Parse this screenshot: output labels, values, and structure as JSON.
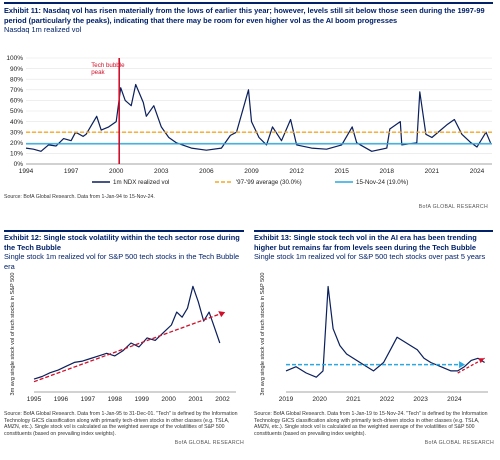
{
  "brand": "BofA GLOBAL RESEARCH",
  "charts": [
    {
      "exhibit": "Exhibit 11:",
      "title": "Nasdaq vol has risen materially from the lows of earlier this year; however, levels still sit below those seen during the 1997-99 period (particularly the peaks), indicating that there may be room for even higher vol as the AI boom progresses",
      "subtitle": "Nasdaq 1m realized vol",
      "source": "Source: BofA Global Research. Data from 1-Jan-94 to 15-Nov-24."
    },
    {
      "exhibit": "Exhibit 12:",
      "title": "Single stock volatility within the tech sector rose during the Tech Bubble",
      "subtitle": "Single stock 1m realized vol for S&P 500 tech stocks in the Tech Bubble era",
      "source": "Source: BofA Global Research. Data from 1-Jan-95 to 31-Dec-01. \"Tech\" is defined by the Information Technology GICS classification along with primarily tech-driven stocks in other classes (e.g. TSLA, AMZN, etc.). Single stock vol is calculated as the weighted average of the volatilities of S&P 500 constituents (based on prevailing index weights)."
    },
    {
      "exhibit": "Exhibit 13:",
      "title": "Single stock tech vol in the AI era has been trending higher but remains far from levels seen during the Tech Bubble",
      "subtitle": "Single stock 1m realized vol for S&P 500 tech stocks over past 5 years",
      "source": "Source: BofA Global Research. Data from 1-Jan-19 to 15-Nov-24. \"Tech\" is defined by the Information Technology GICS classification along with primarily tech-driven stocks in other classes (e.g. TSLA, AMZN, etc.). Single stock vol is calculated as the weighted average of the volatilities of S&P 500 constituents (based on prevailing index weights)."
    }
  ],
  "chart_data": [
    {
      "type": "line",
      "ylim": [
        0,
        100
      ],
      "yticks": [
        "0%",
        "10%",
        "20%",
        "30%",
        "40%",
        "50%",
        "60%",
        "70%",
        "80%",
        "90%",
        "100%"
      ],
      "xlim": [
        1994,
        2025
      ],
      "xticks": [
        "1994",
        "1997",
        "2000",
        "2003",
        "2006",
        "2009",
        "2012",
        "2015",
        "2018",
        "2021",
        "2024"
      ],
      "annotation": "Tech bubble peak",
      "annotation_x": 2000.2,
      "colors": {
        "vol": "#0a1f5c",
        "avg": "#f5a623",
        "current": "#2aa8df",
        "peak": "#d0102a"
      },
      "series": [
        {
          "name": "1m NDX realized vol",
          "x": [
            1994,
            1994.5,
            1995,
            1995.5,
            1996,
            1996.5,
            1997,
            1997.3,
            1997.8,
            1998,
            1998.7,
            1999,
            1999.5,
            2000,
            2000.3,
            2000.6,
            2001,
            2001.3,
            2001.8,
            2002,
            2002.5,
            2003,
            2003.5,
            2004,
            2005,
            2006,
            2007,
            2007.6,
            2008,
            2008.8,
            2009,
            2009.5,
            2010,
            2010.4,
            2011,
            2011.6,
            2012,
            2013,
            2014,
            2015,
            2015.7,
            2016,
            2017,
            2018,
            2018.2,
            2018.9,
            2019,
            2020,
            2020.2,
            2020.6,
            2021,
            2022,
            2022.5,
            2023,
            2023.6,
            2024,
            2024.6,
            2024.9
          ],
          "y": [
            15,
            14,
            12,
            18,
            17,
            24,
            22,
            30,
            26,
            28,
            45,
            32,
            35,
            40,
            72,
            60,
            55,
            75,
            58,
            45,
            55,
            35,
            25,
            20,
            15,
            13,
            15,
            27,
            30,
            70,
            40,
            25,
            18,
            35,
            22,
            42,
            18,
            15,
            14,
            18,
            35,
            20,
            12,
            15,
            33,
            40,
            18,
            20,
            68,
            28,
            25,
            37,
            42,
            28,
            20,
            16,
            30,
            20
          ]
        },
        {
          "name": "'97-'99 average (30.0%)",
          "value": 30.0
        },
        {
          "name": "15-Nov-24 (19.0%)",
          "value": 19.0
        }
      ]
    },
    {
      "type": "line",
      "ylabel": "3m avg single stock vol of tech stocks in S&P 500",
      "xlim": [
        1995,
        2002.5
      ],
      "xticks": [
        "1995",
        "1996",
        "1997",
        "1998",
        "1999",
        "2000",
        "2001",
        "2002"
      ],
      "colors": {
        "line": "#0a1f5c",
        "trend": "#d0102a"
      },
      "series": [
        {
          "name": "",
          "x": [
            1995,
            1995.3,
            1995.6,
            1995.9,
            1996.2,
            1996.5,
            1996.8,
            1997.1,
            1997.4,
            1997.7,
            1998,
            1998.3,
            1998.6,
            1998.9,
            1999.2,
            1999.5,
            1999.8,
            2000.1,
            2000.3,
            2000.5,
            2000.7,
            2000.9,
            2001.1,
            2001.3,
            2001.5,
            2001.7,
            2001.9
          ],
          "y": [
            20,
            22,
            25,
            27,
            30,
            33,
            34,
            36,
            38,
            40,
            38,
            42,
            48,
            45,
            52,
            50,
            56,
            62,
            72,
            68,
            75,
            92,
            80,
            65,
            72,
            60,
            48
          ]
        }
      ],
      "trend": {
        "x": [
          1995,
          2002.1
        ],
        "y": [
          18,
          72
        ]
      }
    },
    {
      "type": "line",
      "ylabel": "3m avg single stock vol of tech stocks in S&P 500",
      "xlim": [
        2019,
        2025
      ],
      "xticks": [
        "2019",
        "2020",
        "2021",
        "2022",
        "2023",
        "2024"
      ],
      "colors": {
        "line": "#0a1f5c",
        "trend": "#2aa8df",
        "trend_end": "#d0102a"
      },
      "series": [
        {
          "name": "",
          "x": [
            2019,
            2019.3,
            2019.6,
            2019.9,
            2020.1,
            2020.25,
            2020.4,
            2020.6,
            2020.8,
            2021,
            2021.3,
            2021.6,
            2021.9,
            2022.1,
            2022.3,
            2022.5,
            2022.7,
            2022.9,
            2023.1,
            2023.3,
            2023.6,
            2023.9,
            2024.1,
            2024.3,
            2024.5,
            2024.7,
            2024.9
          ],
          "y": [
            30,
            32,
            29,
            27,
            30,
            70,
            50,
            42,
            38,
            36,
            33,
            30,
            34,
            40,
            46,
            44,
            42,
            40,
            36,
            34,
            32,
            30,
            30,
            32,
            35,
            36,
            34
          ]
        }
      ],
      "trend": {
        "x": [
          2019,
          2024.2
        ],
        "y": [
          33,
          33
        ]
      },
      "trend_end": {
        "x": [
          2024.1,
          2024.9
        ],
        "y": [
          29,
          36
        ]
      }
    }
  ]
}
